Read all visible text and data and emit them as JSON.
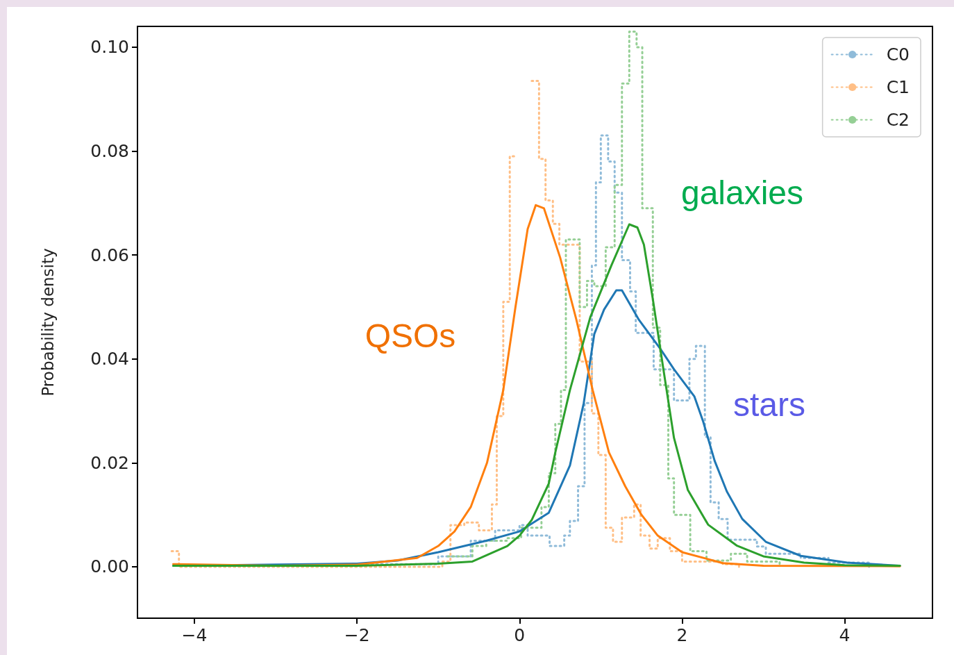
{
  "chart_data": {
    "type": "line",
    "ylabel": "Probability density",
    "xlim": [
      -4.7,
      5.08
    ],
    "ylim": [
      -0.0099,
      0.104
    ],
    "xticks": [
      {
        "value": -4,
        "label": "−4"
      },
      {
        "value": -2,
        "label": "−2"
      },
      0,
      2,
      4
    ],
    "yticks": [
      {
        "value": 0,
        "label": "0.00"
      },
      {
        "value": 0.02,
        "label": "0.02"
      },
      {
        "value": 0.04,
        "label": "0.04"
      },
      {
        "value": 0.06,
        "label": "0.06"
      },
      {
        "value": 0.08,
        "label": "0.08"
      },
      {
        "value": 0.1,
        "label": "0.10"
      }
    ],
    "legend": "top right",
    "annotations": [
      "QSOs",
      "galaxies",
      "stars"
    ],
    "series": [
      {
        "name": "C0",
        "type": "step",
        "line_style": "dotted",
        "color": "#8fbbd9",
        "x": [
          -2.0,
          -1.0,
          -0.6,
          -0.3,
          0.0,
          0.1,
          0.37,
          0.55,
          0.62,
          0.72,
          0.8,
          0.89,
          0.94,
          1.0,
          1.09,
          1.17,
          1.26,
          1.36,
          1.43,
          1.65,
          1.9,
          2.09,
          2.17,
          2.28,
          2.35,
          2.45,
          2.56,
          2.92,
          3.03,
          3.46,
          3.8,
          4.3
        ],
        "values": [
          0.0005,
          0.002,
          0.005,
          0.007,
          0.008,
          0.006,
          0.004,
          0.006,
          0.0088,
          0.0155,
          0.0315,
          0.058,
          0.074,
          0.083,
          0.078,
          0.072,
          0.059,
          0.053,
          0.045,
          0.038,
          0.032,
          0.04,
          0.0425,
          0.025,
          0.0124,
          0.0092,
          0.0052,
          0.0039,
          0.0025,
          0.0017,
          0.0008,
          0
        ]
      },
      {
        "name": "C1",
        "type": "step",
        "line_style": "dotted",
        "color": "#ffbf86",
        "x": [
          -4.28,
          -4.19,
          -0.95,
          -0.85,
          -0.68,
          -0.5,
          -0.34,
          -0.28,
          -0.2,
          -0.12,
          -0.03,
          0.06,
          0.15,
          0.24,
          0.32,
          0.41,
          0.49,
          0.58,
          0.66,
          0.74,
          0.89,
          0.97,
          1.06,
          1.15,
          1.26,
          1.34,
          1.41,
          1.49,
          1.6,
          1.7,
          1.85,
          2.0,
          2.5,
          2.7
        ],
        "values": [
          0.003,
          0,
          0.001,
          0.008,
          0.0085,
          0.007,
          0.012,
          0.029,
          0.051,
          0.079,
          null,
          null,
          0.0935,
          0.0785,
          0.0705,
          0.066,
          0.062,
          0.062,
          0.062,
          0.0395,
          0.0295,
          0.0215,
          0.0075,
          0.0048,
          0.0095,
          0.0095,
          0.012,
          0.006,
          0.0035,
          0.0055,
          0.003,
          0.001,
          0.0005,
          0
        ]
      },
      {
        "name": "C2",
        "type": "step",
        "line_style": "dotted",
        "color": "#95cf95",
        "x": [
          -0.88,
          -0.58,
          -0.41,
          -0.15,
          0.02,
          0.27,
          0.36,
          0.44,
          0.51,
          0.57,
          0.74,
          0.83,
          0.92,
          1.06,
          1.17,
          1.26,
          1.35,
          1.44,
          1.51,
          1.64,
          1.73,
          1.83,
          1.9,
          2.1,
          2.3,
          2.6,
          2.8,
          3.2
        ],
        "values": [
          0.002,
          0.004,
          0.005,
          0.0055,
          0.0075,
          0.0115,
          0.018,
          0.0275,
          0.034,
          0.063,
          0.05,
          0.055,
          0.054,
          0.0615,
          0.0735,
          0.093,
          0.103,
          0.1,
          0.069,
          0.046,
          0.035,
          0.017,
          0.01,
          0.003,
          0.0012,
          0.0025,
          0.001,
          0
        ]
      },
      {
        "line_style": "solid",
        "color": "#1f77b4",
        "x": [
          -4.26,
          -2,
          -1.5,
          -1.0,
          -0.41,
          0.0,
          0.36,
          0.62,
          0.79,
          0.92,
          1.04,
          1.19,
          1.26,
          1.47,
          1.73,
          1.9,
          2.15,
          2.26,
          2.4,
          2.55,
          2.74,
          3.03,
          3.46,
          4.03,
          4.68
        ],
        "values": [
          0.0002,
          0.0006,
          0.0012,
          0.0028,
          0.005,
          0.0068,
          0.0104,
          0.0195,
          0.0315,
          0.0448,
          0.0495,
          0.0532,
          0.0532,
          0.0475,
          0.042,
          0.038,
          0.0328,
          0.0279,
          0.0204,
          0.0145,
          0.0092,
          0.0048,
          0.0021,
          0.0008,
          0.0002
        ]
      },
      {
        "line_style": "solid",
        "color": "#ff7f0e",
        "x": [
          -4.26,
          -3,
          -2,
          -1.26,
          -1.0,
          -0.8,
          -0.6,
          -0.4,
          -0.2,
          -0.05,
          0.1,
          0.2,
          0.3,
          0.5,
          0.7,
          0.9,
          1.1,
          1.3,
          1.5,
          1.7,
          2.0,
          2.5,
          3.0,
          4.68
        ],
        "values": [
          0.0005,
          0.0002,
          0.0004,
          0.0017,
          0.004,
          0.0068,
          0.0115,
          0.02,
          0.034,
          0.05,
          0.065,
          0.0696,
          0.069,
          0.0595,
          0.0475,
          0.034,
          0.022,
          0.0155,
          0.01,
          0.006,
          0.0028,
          0.0007,
          0.0002,
          0.0001
        ]
      },
      {
        "line_style": "solid",
        "color": "#2ca02c",
        "x": [
          -4.26,
          -2,
          -1,
          -0.58,
          -0.15,
          0.0,
          0.15,
          0.36,
          0.44,
          0.62,
          0.87,
          1.13,
          1.35,
          1.45,
          1.53,
          1.64,
          1.77,
          1.9,
          2.07,
          2.32,
          2.67,
          3.0,
          3.5,
          4.0,
          4.68
        ],
        "values": [
          0.0002,
          0.0002,
          0.0006,
          0.001,
          0.004,
          0.006,
          0.009,
          0.016,
          0.022,
          0.034,
          0.048,
          0.058,
          0.0659,
          0.0653,
          0.062,
          0.0515,
          0.038,
          0.0248,
          0.0148,
          0.0081,
          0.0041,
          0.002,
          0.0008,
          0.0003,
          0.0002
        ]
      }
    ]
  }
}
